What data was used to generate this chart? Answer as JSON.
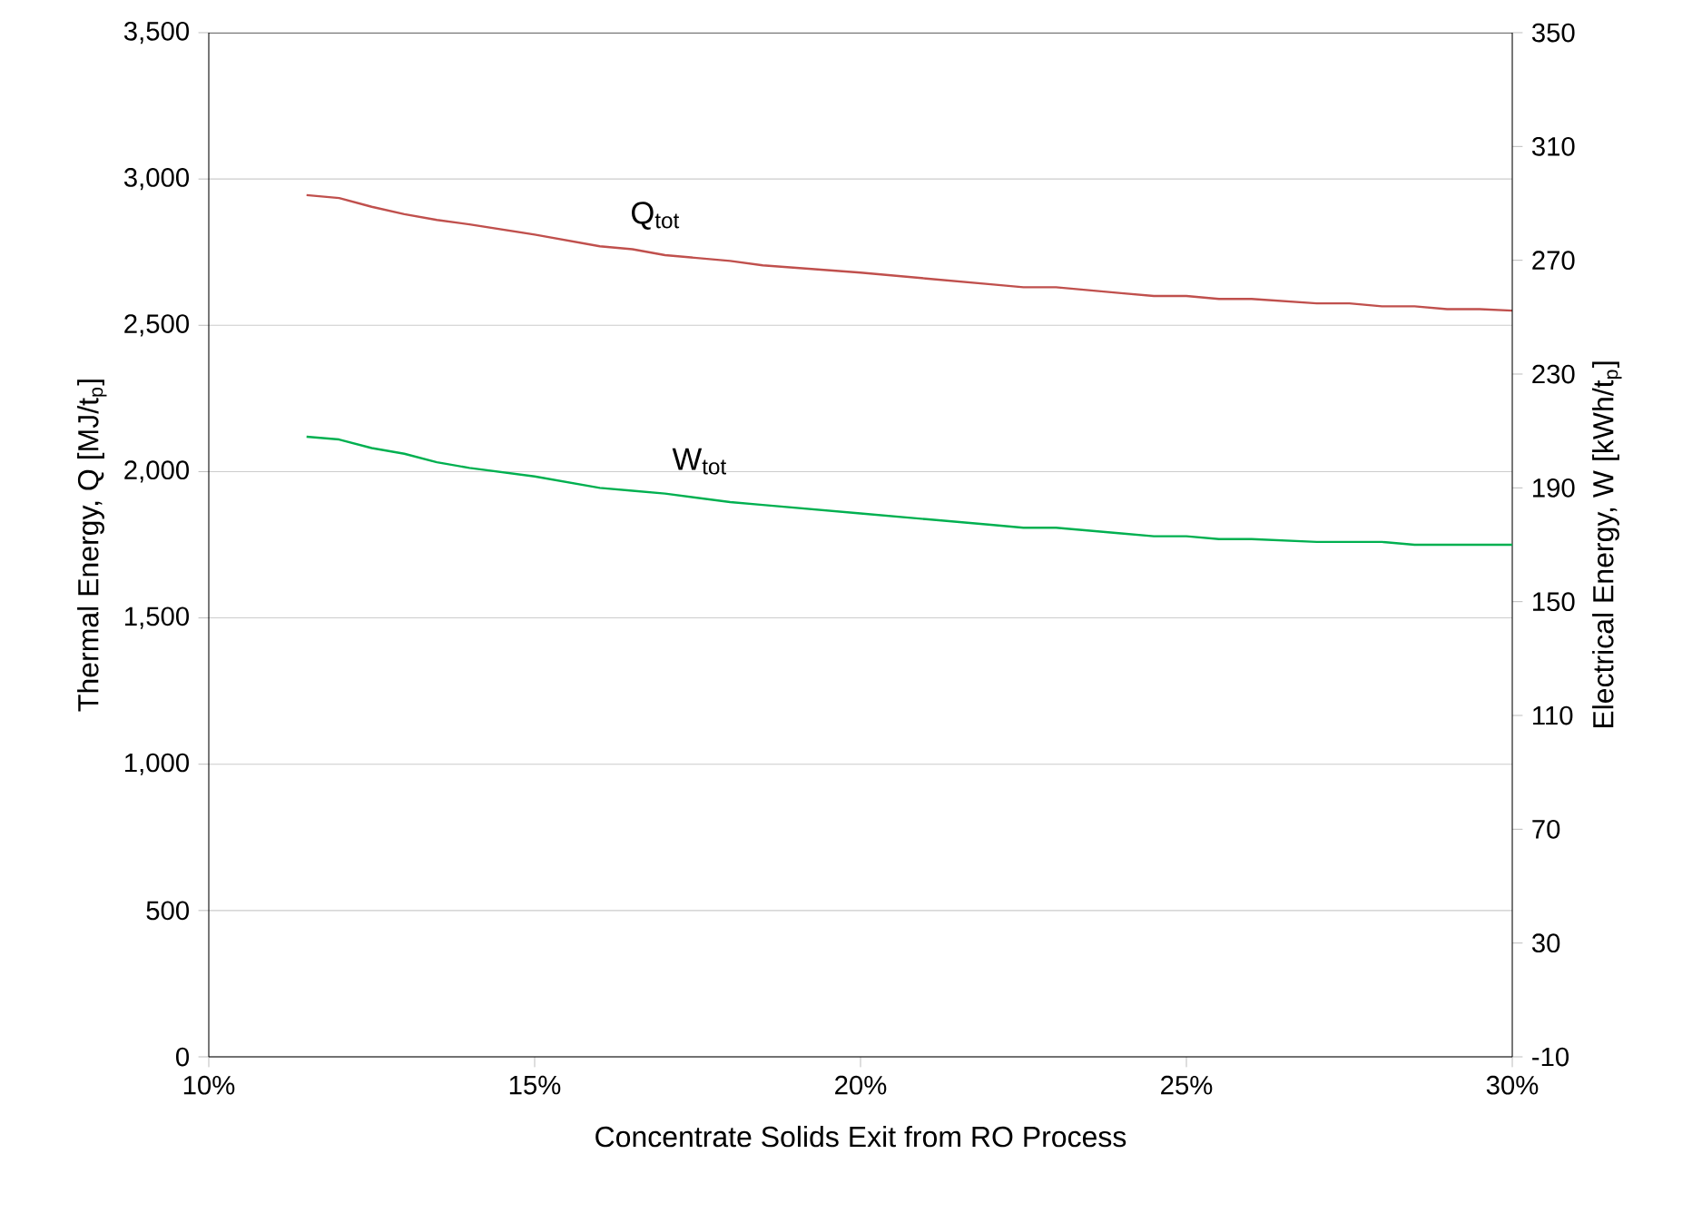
{
  "chart_data": {
    "type": "line",
    "xlabel": "Concentrate Solids Exit from RO Process",
    "ylabel": "Thermal Energy, Q [MJ/t$_{p}$]",
    "y2label": "Electrical Energy, W [kWh/t$_{p}$]",
    "x": [
      11.5,
      12,
      12.5,
      13,
      13.5,
      14,
      15,
      16,
      16.5,
      17,
      18,
      18.5,
      20,
      21,
      22,
      22.5,
      23,
      24,
      24.5,
      25,
      25.5,
      26,
      27,
      27.5,
      28,
      28.5,
      29,
      29.5,
      30
    ],
    "series": [
      {
        "name": "Q$_{tot}$",
        "color": "#c0504d",
        "values": [
          2945,
          2935,
          2905,
          2880,
          2860,
          2845,
          2810,
          2770,
          2760,
          2740,
          2720,
          2705,
          2680,
          2660,
          2640,
          2630,
          2630,
          2610,
          2600,
          2600,
          2590,
          2590,
          2575,
          2575,
          2565,
          2565,
          2555,
          2555,
          2550
        ]
      },
      {
        "name": "W$_{tot}$",
        "color": "#00b050",
        "axis": "y2",
        "values": [
          208,
          207,
          204,
          202,
          199,
          197,
          194,
          190,
          189,
          188,
          185,
          184,
          181,
          179,
          177,
          176,
          176,
          174,
          173,
          173,
          172,
          172,
          171,
          171,
          171,
          170,
          170,
          170,
          170
        ]
      }
    ],
    "xlim": [
      10,
      30
    ],
    "xticks": [
      {
        "value": 10,
        "label": "10%"
      },
      {
        "value": 15,
        "label": "15%"
      },
      {
        "value": 20,
        "label": "20%"
      },
      {
        "value": 25,
        "label": "25%"
      },
      {
        "value": 30,
        "label": "30%"
      }
    ],
    "ylim": [
      0,
      3500
    ],
    "yticks": [
      0,
      500,
      {
        "value": 1000,
        "label": "1,000"
      },
      {
        "value": 1500,
        "label": "1,500"
      },
      {
        "value": 2000,
        "label": "2,000"
      },
      {
        "value": 2500,
        "label": "2,500"
      },
      {
        "value": 3000,
        "label": "3,000"
      },
      {
        "value": 3500,
        "label": "3,500"
      }
    ],
    "y2lim": [
      -10,
      350
    ],
    "y2ticks": [
      -10,
      30,
      70,
      110,
      150,
      190,
      230,
      270,
      310,
      350
    ],
    "grid": "y"
  }
}
